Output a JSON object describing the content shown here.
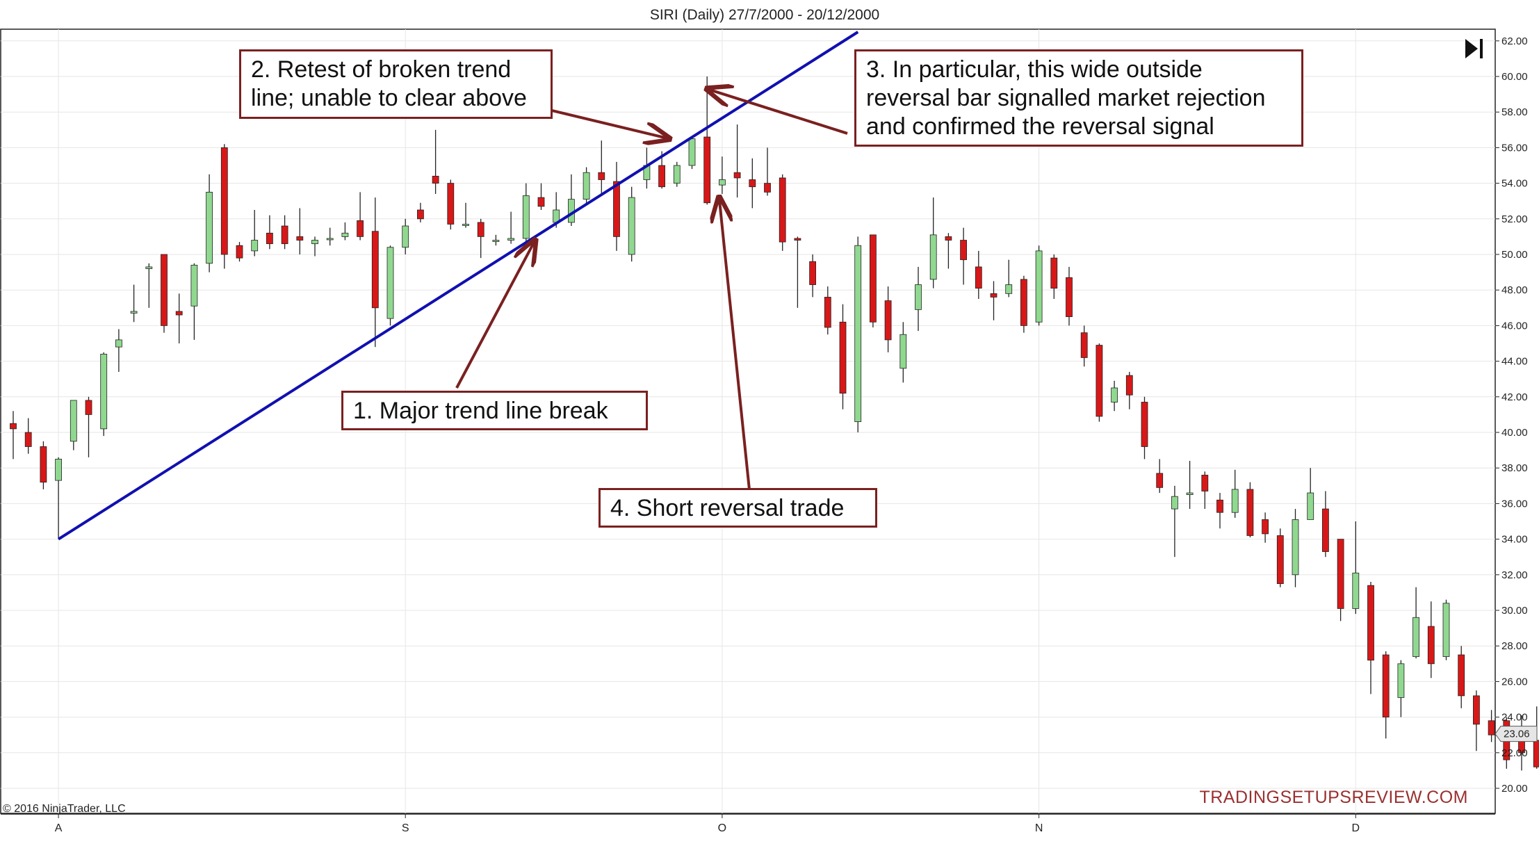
{
  "chart_data": {
    "type": "candlestick",
    "title": "SIRI (Daily)  27/7/2000 - 20/12/2000",
    "copyright": "© 2016 NinjaTrader, LLC",
    "watermark": "TRADINGSETUPSREVIEW.COM",
    "last_price_label": "23.06",
    "ylim": [
      19,
      62.5
    ],
    "y_ticks": [
      "20.00",
      "22.00",
      "24.00",
      "26.00",
      "28.00",
      "30.00",
      "32.00",
      "34.00",
      "36.00",
      "38.00",
      "40.00",
      "42.00",
      "44.00",
      "46.00",
      "48.00",
      "50.00",
      "52.00",
      "54.00",
      "56.00",
      "58.00",
      "60.00",
      "62.00"
    ],
    "month_labels": [
      {
        "label": "A",
        "bar": 3
      },
      {
        "label": "S",
        "bar": 26
      },
      {
        "label": "O",
        "bar": 47
      },
      {
        "label": "N",
        "bar": 68
      },
      {
        "label": "D",
        "bar": 89
      }
    ],
    "grid": true,
    "colors": {
      "up": "#90d890",
      "down": "#d81818",
      "wick": "#222222",
      "trendline": "#1010b0",
      "annotation": "#7a2020",
      "watermark": "#9a3030"
    },
    "candles": [
      {
        "o": 40.5,
        "h": 41.2,
        "l": 38.5,
        "c": 40.2
      },
      {
        "o": 40.0,
        "h": 40.8,
        "l": 38.8,
        "c": 39.2
      },
      {
        "o": 39.2,
        "h": 39.5,
        "l": 36.8,
        "c": 37.2
      },
      {
        "o": 37.3,
        "h": 38.6,
        "l": 34.0,
        "c": 38.5
      },
      {
        "o": 39.5,
        "h": 41.5,
        "l": 39.0,
        "c": 41.8
      },
      {
        "o": 41.8,
        "h": 42.0,
        "l": 38.6,
        "c": 41.0
      },
      {
        "o": 40.2,
        "h": 44.5,
        "l": 39.8,
        "c": 44.4
      },
      {
        "o": 44.8,
        "h": 45.8,
        "l": 43.4,
        "c": 45.2
      },
      {
        "o": 46.7,
        "h": 48.3,
        "l": 46.2,
        "c": 46.8
      },
      {
        "o": 49.2,
        "h": 49.5,
        "l": 47.0,
        "c": 49.3
      },
      {
        "o": 50.0,
        "h": 50.0,
        "l": 45.6,
        "c": 46.0
      },
      {
        "o": 46.8,
        "h": 47.8,
        "l": 45.0,
        "c": 46.6
      },
      {
        "o": 47.1,
        "h": 49.5,
        "l": 45.2,
        "c": 49.4
      },
      {
        "o": 49.5,
        "h": 54.5,
        "l": 49.0,
        "c": 53.5
      },
      {
        "o": 56.0,
        "h": 56.2,
        "l": 49.2,
        "c": 50.0
      },
      {
        "o": 50.5,
        "h": 50.7,
        "l": 49.6,
        "c": 49.8
      },
      {
        "o": 50.2,
        "h": 52.5,
        "l": 49.9,
        "c": 50.8
      },
      {
        "o": 51.2,
        "h": 52.2,
        "l": 50.3,
        "c": 50.6
      },
      {
        "o": 51.6,
        "h": 52.2,
        "l": 50.3,
        "c": 50.6
      },
      {
        "o": 51.0,
        "h": 52.6,
        "l": 50.0,
        "c": 50.8
      },
      {
        "o": 50.6,
        "h": 51.0,
        "l": 49.9,
        "c": 50.8
      },
      {
        "o": 50.9,
        "h": 51.5,
        "l": 50.5,
        "c": 50.9
      },
      {
        "o": 51.0,
        "h": 51.8,
        "l": 50.8,
        "c": 51.2
      },
      {
        "o": 51.9,
        "h": 53.5,
        "l": 50.8,
        "c": 51.0
      },
      {
        "o": 51.3,
        "h": 53.2,
        "l": 44.8,
        "c": 47.0
      },
      {
        "o": 46.4,
        "h": 50.5,
        "l": 46.0,
        "c": 50.4
      },
      {
        "o": 50.4,
        "h": 52.0,
        "l": 50.0,
        "c": 51.6
      },
      {
        "o": 52.5,
        "h": 52.9,
        "l": 51.8,
        "c": 52.0
      },
      {
        "o": 54.4,
        "h": 57.0,
        "l": 53.4,
        "c": 54.0
      },
      {
        "o": 54.0,
        "h": 54.2,
        "l": 51.4,
        "c": 51.7
      },
      {
        "o": 51.7,
        "h": 52.9,
        "l": 51.5,
        "c": 51.7
      },
      {
        "o": 51.8,
        "h": 52.0,
        "l": 49.8,
        "c": 51.0
      },
      {
        "o": 50.8,
        "h": 51.1,
        "l": 50.5,
        "c": 50.8
      },
      {
        "o": 50.8,
        "h": 52.4,
        "l": 50.6,
        "c": 50.9
      },
      {
        "o": 50.9,
        "h": 54.0,
        "l": 50.6,
        "c": 53.3
      },
      {
        "o": 53.2,
        "h": 54.0,
        "l": 52.5,
        "c": 52.7
      },
      {
        "o": 51.8,
        "h": 53.5,
        "l": 51.5,
        "c": 52.5
      },
      {
        "o": 51.8,
        "h": 54.5,
        "l": 51.6,
        "c": 53.1
      },
      {
        "o": 53.1,
        "h": 54.9,
        "l": 52.8,
        "c": 54.6
      },
      {
        "o": 54.6,
        "h": 56.4,
        "l": 53.4,
        "c": 54.2
      },
      {
        "o": 54.1,
        "h": 55.2,
        "l": 50.2,
        "c": 51.0
      },
      {
        "o": 50.0,
        "h": 53.8,
        "l": 49.6,
        "c": 53.2
      },
      {
        "o": 54.2,
        "h": 56.0,
        "l": 53.7,
        "c": 55.0
      },
      {
        "o": 55.0,
        "h": 55.8,
        "l": 53.7,
        "c": 53.8
      },
      {
        "o": 54.0,
        "h": 55.2,
        "l": 53.8,
        "c": 55.0
      },
      {
        "o": 55.0,
        "h": 56.6,
        "l": 54.8,
        "c": 56.5
      },
      {
        "o": 56.6,
        "h": 60.0,
        "l": 52.8,
        "c": 52.9
      },
      {
        "o": 53.9,
        "h": 55.5,
        "l": 53.4,
        "c": 54.2
      },
      {
        "o": 54.6,
        "h": 57.3,
        "l": 53.2,
        "c": 54.3
      },
      {
        "o": 54.2,
        "h": 55.4,
        "l": 52.6,
        "c": 53.8
      },
      {
        "o": 54.0,
        "h": 56.0,
        "l": 53.3,
        "c": 53.5
      },
      {
        "o": 54.3,
        "h": 54.5,
        "l": 50.2,
        "c": 50.7
      },
      {
        "o": 50.9,
        "h": 51.0,
        "l": 47.0,
        "c": 50.8
      },
      {
        "o": 49.6,
        "h": 50.0,
        "l": 47.6,
        "c": 48.3
      },
      {
        "o": 47.6,
        "h": 48.2,
        "l": 45.5,
        "c": 45.9
      },
      {
        "o": 46.2,
        "h": 47.2,
        "l": 41.3,
        "c": 42.2
      },
      {
        "o": 40.6,
        "h": 51.0,
        "l": 40.0,
        "c": 50.5
      },
      {
        "o": 51.1,
        "h": 51.1,
        "l": 45.9,
        "c": 46.2
      },
      {
        "o": 47.4,
        "h": 48.2,
        "l": 44.5,
        "c": 45.2
      },
      {
        "o": 43.6,
        "h": 46.2,
        "l": 42.8,
        "c": 45.5
      },
      {
        "o": 46.9,
        "h": 49.3,
        "l": 45.7,
        "c": 48.3
      },
      {
        "o": 48.6,
        "h": 53.2,
        "l": 48.1,
        "c": 51.1
      },
      {
        "o": 51.0,
        "h": 51.2,
        "l": 49.2,
        "c": 50.8
      },
      {
        "o": 50.8,
        "h": 51.5,
        "l": 48.3,
        "c": 49.7
      },
      {
        "o": 49.3,
        "h": 50.2,
        "l": 47.5,
        "c": 48.1
      },
      {
        "o": 47.8,
        "h": 48.5,
        "l": 46.3,
        "c": 47.6
      },
      {
        "o": 47.8,
        "h": 49.7,
        "l": 47.6,
        "c": 48.3
      },
      {
        "o": 48.6,
        "h": 48.8,
        "l": 45.6,
        "c": 46.0
      },
      {
        "o": 46.2,
        "h": 50.5,
        "l": 46.0,
        "c": 50.2
      },
      {
        "o": 49.8,
        "h": 50.0,
        "l": 47.5,
        "c": 48.1
      },
      {
        "o": 48.7,
        "h": 49.3,
        "l": 46.0,
        "c": 46.5
      },
      {
        "o": 45.6,
        "h": 46.0,
        "l": 43.7,
        "c": 44.2
      },
      {
        "o": 44.9,
        "h": 45.0,
        "l": 40.6,
        "c": 40.9
      },
      {
        "o": 41.7,
        "h": 42.9,
        "l": 41.2,
        "c": 42.5
      },
      {
        "o": 43.2,
        "h": 43.4,
        "l": 41.3,
        "c": 42.1
      },
      {
        "o": 41.7,
        "h": 42.0,
        "l": 38.5,
        "c": 39.2
      },
      {
        "o": 37.7,
        "h": 38.5,
        "l": 36.6,
        "c": 36.9
      },
      {
        "o": 35.7,
        "h": 37.0,
        "l": 33.0,
        "c": 36.4
      },
      {
        "o": 36.5,
        "h": 38.4,
        "l": 35.7,
        "c": 36.6
      },
      {
        "o": 37.6,
        "h": 37.8,
        "l": 35.7,
        "c": 36.7
      },
      {
        "o": 36.2,
        "h": 36.6,
        "l": 34.6,
        "c": 35.5
      },
      {
        "o": 35.5,
        "h": 37.9,
        "l": 35.2,
        "c": 36.8
      },
      {
        "o": 36.8,
        "h": 37.2,
        "l": 34.1,
        "c": 34.2
      },
      {
        "o": 35.1,
        "h": 35.5,
        "l": 33.8,
        "c": 34.3
      },
      {
        "o": 34.2,
        "h": 34.6,
        "l": 31.3,
        "c": 31.5
      },
      {
        "o": 32.0,
        "h": 35.7,
        "l": 31.3,
        "c": 35.1
      },
      {
        "o": 35.1,
        "h": 38.0,
        "l": 35.1,
        "c": 36.6
      },
      {
        "o": 35.7,
        "h": 36.7,
        "l": 33.0,
        "c": 33.3
      },
      {
        "o": 34.0,
        "h": 34.0,
        "l": 29.4,
        "c": 30.1
      },
      {
        "o": 30.1,
        "h": 35.0,
        "l": 29.8,
        "c": 32.1
      },
      {
        "o": 31.4,
        "h": 31.6,
        "l": 25.3,
        "c": 27.2
      },
      {
        "o": 27.5,
        "h": 27.7,
        "l": 22.8,
        "c": 24.0
      },
      {
        "o": 25.1,
        "h": 27.2,
        "l": 24.0,
        "c": 27.0
      },
      {
        "o": 27.4,
        "h": 31.3,
        "l": 27.3,
        "c": 29.6
      },
      {
        "o": 29.1,
        "h": 30.5,
        "l": 26.2,
        "c": 27.0
      },
      {
        "o": 27.4,
        "h": 30.6,
        "l": 27.2,
        "c": 30.4
      },
      {
        "o": 27.5,
        "h": 28.0,
        "l": 24.5,
        "c": 25.2
      },
      {
        "o": 25.2,
        "h": 25.5,
        "l": 22.1,
        "c": 23.6
      },
      {
        "o": 23.8,
        "h": 24.4,
        "l": 22.6,
        "c": 23.0
      },
      {
        "o": 23.8,
        "h": 24.0,
        "l": 21.1,
        "c": 21.6
      },
      {
        "o": 23.0,
        "h": 24.1,
        "l": 21.0,
        "c": 22.0
      },
      {
        "o": 22.7,
        "h": 24.6,
        "l": 21.1,
        "c": 21.2
      },
      {
        "o": 21.9,
        "h": 24.2,
        "l": 21.6,
        "c": 23.06
      }
    ],
    "trendline": {
      "from": {
        "bar": 3,
        "y": 34.0
      },
      "to": {
        "bar": 56,
        "y": 62.5
      }
    },
    "annotations": [
      {
        "id": "note1",
        "text": "1. Major trend line break"
      },
      {
        "id": "note2",
        "lines": [
          "2. Retest of broken trend",
          "line; unable to clear above"
        ]
      },
      {
        "id": "note3",
        "lines": [
          "3. In particular, this wide outside",
          "reversal bar signalled market rejection",
          "and confirmed the reversal signal"
        ]
      },
      {
        "id": "note4",
        "text": "4. Short reversal trade"
      }
    ],
    "arrows": [
      {
        "from": {
          "bar": 29.4,
          "y": 42.5
        },
        "to": {
          "bar": 34.6,
          "y": 50.8
        }
      },
      {
        "from": {
          "bar": 33.2,
          "y": 58.6
        },
        "to": {
          "bar": 43.5,
          "y": 56.5
        }
      },
      {
        "from": {
          "bar": 55.3,
          "y": 56.8
        },
        "to": {
          "bar": 46.0,
          "y": 59.3
        }
      },
      {
        "from": {
          "bar": 48.8,
          "y": 36.8
        },
        "to": {
          "bar": 46.8,
          "y": 53.2
        }
      }
    ]
  }
}
